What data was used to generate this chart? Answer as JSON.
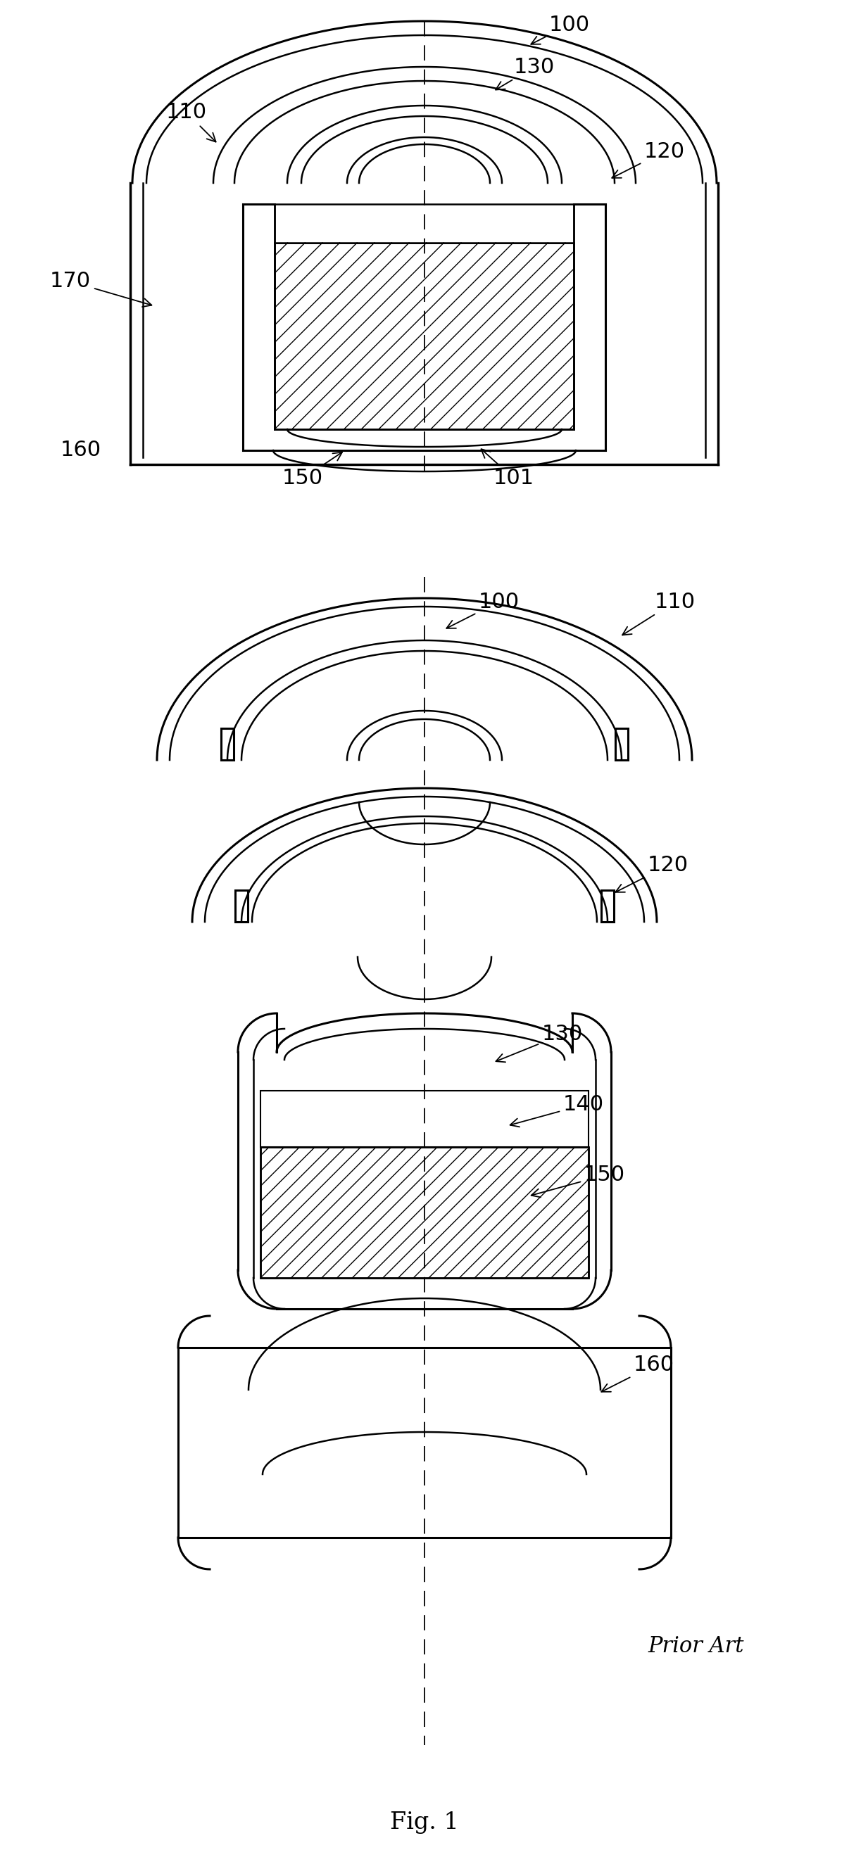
{
  "fig_width": 12.06,
  "fig_height": 26.56,
  "bg_color": "#ffffff",
  "line_color": "#000000",
  "fig1_label": "Fig. 1",
  "prior_art_label": "Prior Art"
}
